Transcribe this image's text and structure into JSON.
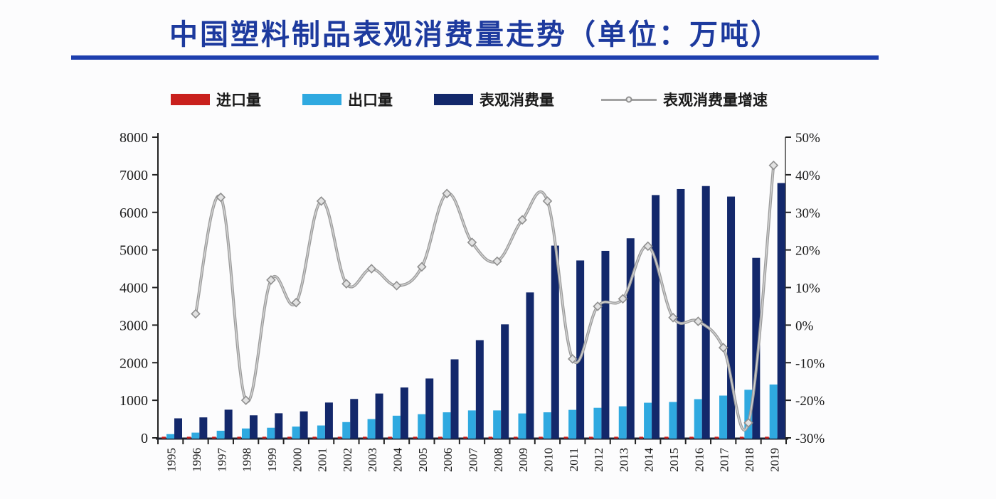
{
  "title": {
    "text": "中国塑料制品表观消费量走势（单位：万吨）"
  },
  "legend": [
    {
      "label": "进口量",
      "swatch": "bar",
      "color": "#c9201d"
    },
    {
      "label": "出口量",
      "swatch": "bar",
      "color": "#2fa9e0"
    },
    {
      "label": "表观消费量",
      "swatch": "bar",
      "color": "#13286b"
    },
    {
      "label": "表观消费量增速",
      "swatch": "line",
      "color": "#a2a2a2"
    }
  ],
  "chart_data": {
    "type": "bar+line combo, dual axis",
    "title": "中国塑料制品表观消费量走势（单位：万吨）",
    "categories": [
      "1995",
      "1996",
      "1997",
      "1998",
      "1999",
      "2000",
      "2001",
      "2002",
      "2003",
      "2004",
      "2005",
      "2006",
      "2007",
      "2008",
      "2009",
      "2010",
      "2011",
      "2012",
      "2013",
      "2014",
      "2015",
      "2016",
      "2017",
      "2018",
      "2019"
    ],
    "series": [
      {
        "name": "进口量",
        "type": "bar",
        "axis": "left",
        "color": "#c9201d",
        "values": [
          30,
          30,
          30,
          30,
          30,
          30,
          30,
          30,
          30,
          30,
          30,
          30,
          30,
          30,
          30,
          30,
          30,
          30,
          30,
          30,
          30,
          30,
          30,
          30,
          30
        ]
      },
      {
        "name": "出口量",
        "type": "bar",
        "axis": "left",
        "color": "#2fa9e0",
        "values": [
          100,
          140,
          190,
          250,
          270,
          300,
          330,
          420,
          500,
          590,
          630,
          680,
          730,
          730,
          650,
          680,
          745,
          800,
          840,
          935,
          955,
          1030,
          1125,
          1280,
          1420
        ]
      },
      {
        "name": "表观消费量",
        "type": "bar",
        "axis": "left",
        "color": "#13286b",
        "values": [
          520,
          545,
          750,
          600,
          655,
          705,
          940,
          1035,
          1180,
          1340,
          1580,
          2090,
          2600,
          3020,
          3870,
          5115,
          4720,
          4975,
          5310,
          6460,
          6620,
          6700,
          6420,
          4790,
          6780
        ]
      },
      {
        "name": "表观消费量增速",
        "type": "line",
        "axis": "right",
        "color": "#a2a2a2",
        "values": [
          null,
          3,
          34,
          -20,
          12,
          6,
          33,
          11,
          15,
          10.5,
          15.5,
          35,
          22,
          17,
          28,
          33,
          -9,
          5,
          7,
          21,
          2,
          1,
          -6,
          -26,
          42.5
        ]
      }
    ],
    "left_axis": {
      "min": 0,
      "max": 8000,
      "step": 1000,
      "ticks": [
        "8000",
        "7000",
        "6000",
        "5000",
        "4000",
        "3000",
        "2000",
        "1000",
        "0"
      ]
    },
    "right_axis": {
      "min": -30,
      "max": 50,
      "step": 10,
      "ticks": [
        "50%",
        "40%",
        "30%",
        "20%",
        "10%",
        "0%",
        "-10%",
        "-20%",
        "-30%"
      ]
    },
    "grid": false,
    "legend_position": "top",
    "x_label_rotation": -90
  }
}
